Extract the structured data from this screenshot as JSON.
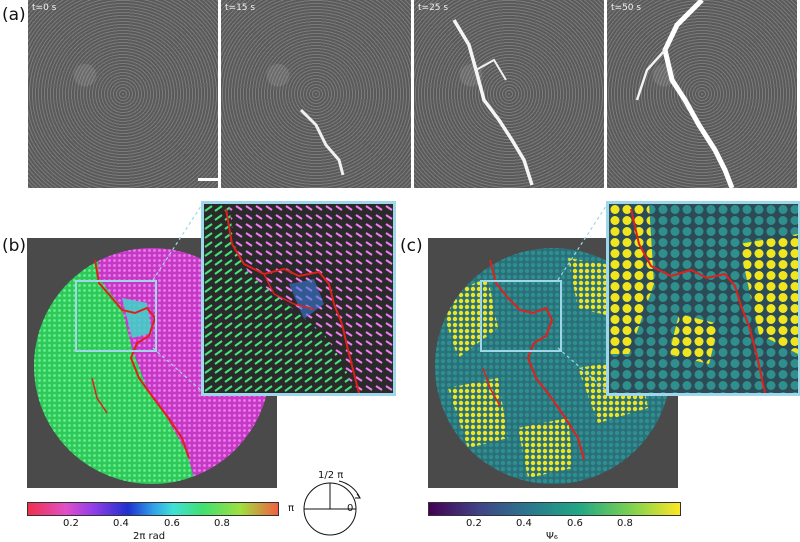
{
  "labels": {
    "a": "(a)",
    "b": "(b)",
    "c": "(c)"
  },
  "frames": [
    {
      "time": "t=0 s"
    },
    {
      "time": "t=15 s"
    },
    {
      "time": "t=25 s"
    },
    {
      "time": "t=50 s"
    }
  ],
  "colorbar_b": {
    "ticks": [
      "0.2",
      "0.4",
      "0.6",
      "0.8"
    ],
    "label": "2π rad"
  },
  "dial": {
    "top": "1/2 π",
    "left": "π",
    "right": "0"
  },
  "colorbar_c": {
    "ticks": [
      "0.2",
      "0.4",
      "0.6",
      "0.8"
    ],
    "label": "Ψ₆"
  },
  "colors": {
    "inset_border": "#9fd6ea",
    "grain_boundary": "#e0201c",
    "phase_left": "#3ee06a",
    "phase_right": "#d84cd8",
    "psi_high": "#f1e51d",
    "psi_mid": "#2e8f8c",
    "psi_low": "#3b1a5a"
  }
}
